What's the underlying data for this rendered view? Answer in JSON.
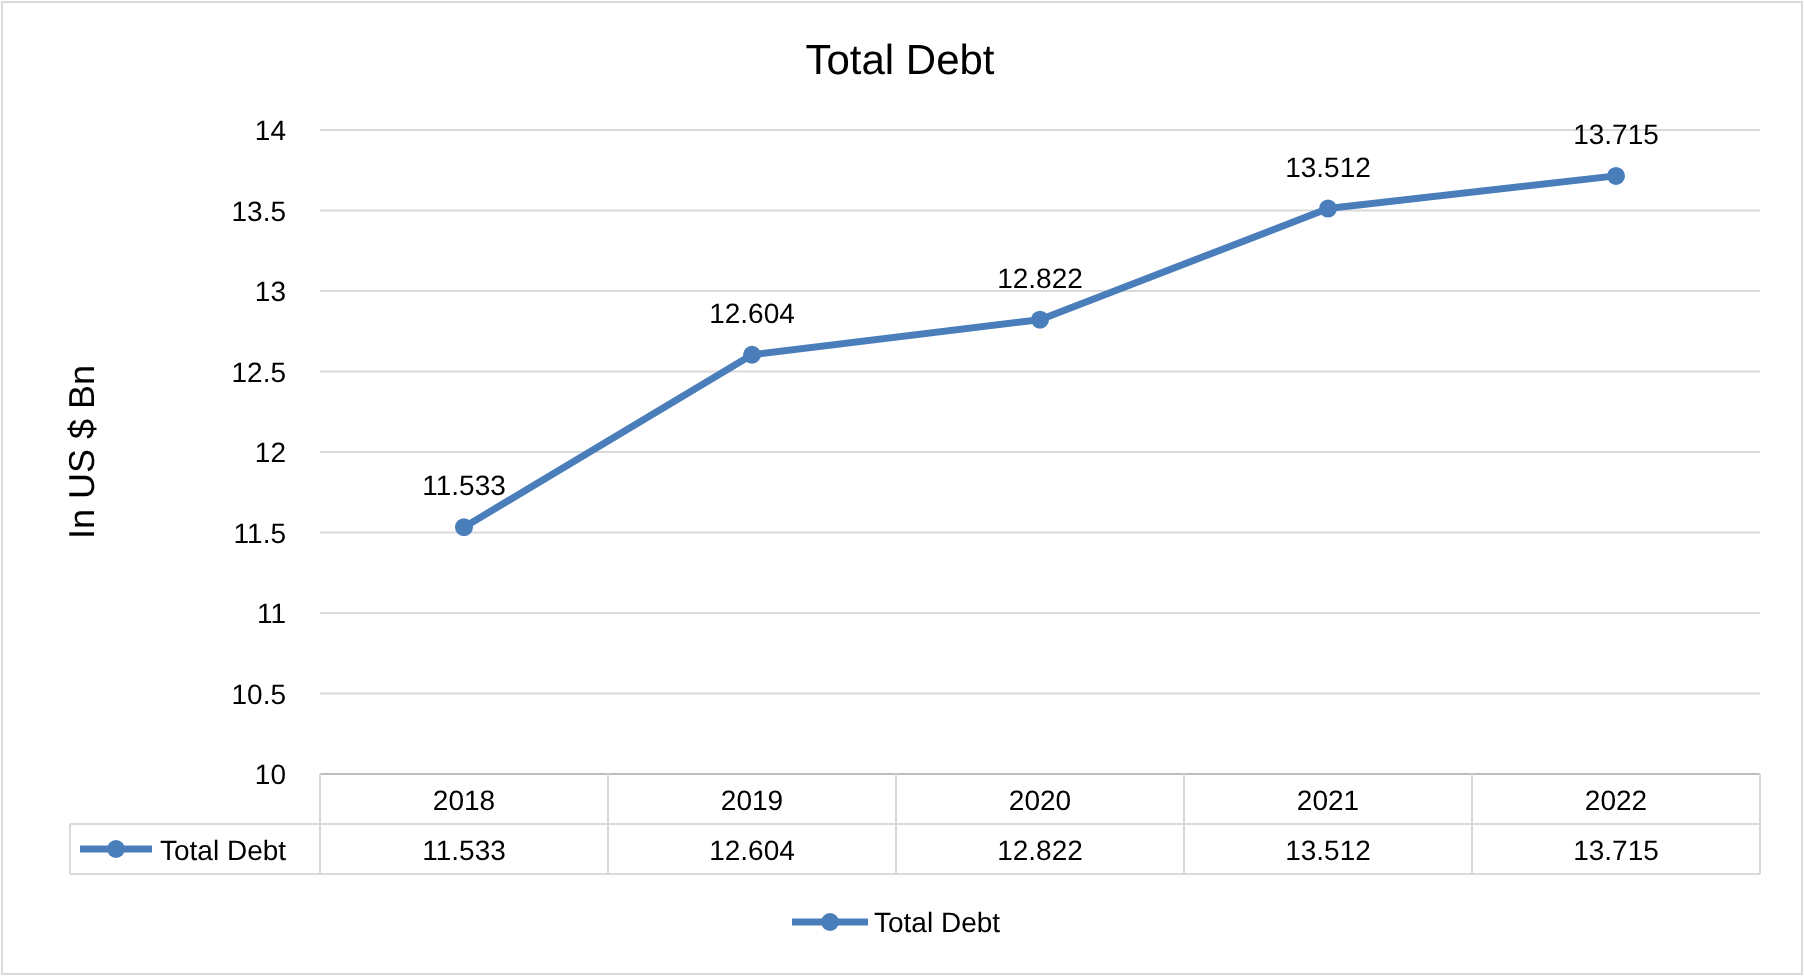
{
  "chart_data": {
    "type": "line",
    "title": "Total Debt",
    "ylabel": "In US $ Bn",
    "categories": [
      "2018",
      "2019",
      "2020",
      "2021",
      "2022"
    ],
    "series": [
      {
        "name": "Total Debt",
        "color": "#4a7ebb",
        "values": [
          11.533,
          12.604,
          12.822,
          13.512,
          13.715
        ]
      }
    ],
    "annotations": [
      {
        "text": "11.533",
        "x": "2018",
        "y": 11.533
      },
      {
        "text": "12.604",
        "x": "2019",
        "y": 12.604
      },
      {
        "text": "12.822",
        "x": "2020",
        "y": 12.822
      },
      {
        "text": "13.512",
        "x": "2021",
        "y": 13.512
      },
      {
        "text": "13.715",
        "x": "2022",
        "y": 13.715
      }
    ],
    "ylim": [
      10,
      14
    ],
    "yticks": [
      10,
      10.5,
      11,
      11.5,
      12,
      12.5,
      13,
      13.5,
      14
    ],
    "grid": "y",
    "data_labels": true,
    "legend": "bottom",
    "marker": "circle",
    "line_style": "solid"
  }
}
